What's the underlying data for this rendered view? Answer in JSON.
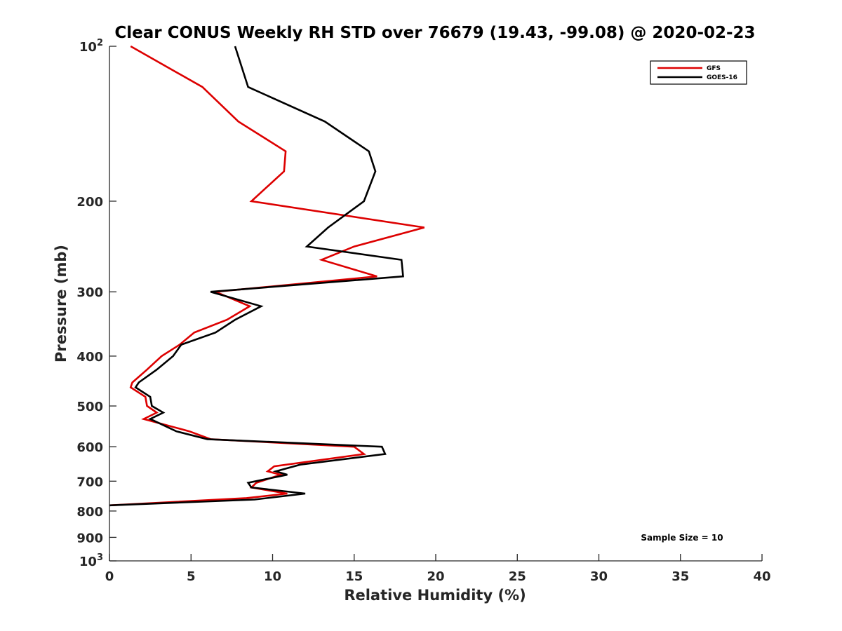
{
  "chart_data": {
    "type": "line",
    "title": "Clear CONUS Weekly RH STD over 76679 (19.43, -99.08) @ 2020-02-23",
    "xlabel": "Relative Humidity (%)",
    "ylabel": "Pressure (mb)",
    "xlim": [
      0,
      40
    ],
    "ylim": [
      100,
      1000
    ],
    "yscale": "log",
    "y_reversed": true,
    "grid": false,
    "legend_position": "top-right",
    "x_ticks": [
      "0",
      "5",
      "10",
      "15",
      "20",
      "25",
      "30",
      "35",
      "40"
    ],
    "y_ticks": [
      {
        "value": 100,
        "base": "10",
        "exp": "2"
      },
      {
        "value": 200,
        "label": "200"
      },
      {
        "value": 300,
        "label": "300"
      },
      {
        "value": 400,
        "label": "400"
      },
      {
        "value": 500,
        "label": "500"
      },
      {
        "value": 600,
        "label": "600"
      },
      {
        "value": 700,
        "label": "700"
      },
      {
        "value": 800,
        "label": "800"
      },
      {
        "value": 900,
        "label": "900"
      },
      {
        "value": 1000,
        "base": "10",
        "exp": "3"
      }
    ],
    "annotation": "Sample Size = 10",
    "series": [
      {
        "name": "GFS",
        "color": "#dd0000",
        "points": [
          [
            1.3,
            100
          ],
          [
            5.7,
            120
          ],
          [
            7.9,
            140
          ],
          [
            10.8,
            160
          ],
          [
            10.7,
            175
          ],
          [
            8.7,
            200
          ],
          [
            19.3,
            225
          ],
          [
            15.0,
            245
          ],
          [
            13.0,
            260
          ],
          [
            16.4,
            280
          ],
          [
            6.5,
            300
          ],
          [
            8.6,
            320
          ],
          [
            7.2,
            340
          ],
          [
            5.2,
            360
          ],
          [
            4.3,
            380
          ],
          [
            3.2,
            400
          ],
          [
            2.3,
            425
          ],
          [
            1.4,
            450
          ],
          [
            1.3,
            460
          ],
          [
            2.2,
            480
          ],
          [
            2.3,
            500
          ],
          [
            2.9,
            515
          ],
          [
            2.1,
            530
          ],
          [
            4.9,
            560
          ],
          [
            6.2,
            580
          ],
          [
            15.0,
            600
          ],
          [
            15.6,
            620
          ],
          [
            10.1,
            655
          ],
          [
            9.7,
            670
          ],
          [
            10.5,
            680
          ],
          [
            9.0,
            705
          ],
          [
            8.7,
            720
          ],
          [
            10.9,
            740
          ],
          [
            8.4,
            755
          ],
          [
            0.0,
            780
          ]
        ]
      },
      {
        "name": "GOES-16",
        "color": "#000000",
        "points": [
          [
            7.7,
            100
          ],
          [
            8.5,
            120
          ],
          [
            13.2,
            140
          ],
          [
            15.9,
            160
          ],
          [
            16.3,
            175
          ],
          [
            15.6,
            200
          ],
          [
            13.4,
            225
          ],
          [
            12.1,
            245
          ],
          [
            17.9,
            260
          ],
          [
            18.0,
            280
          ],
          [
            6.2,
            300
          ],
          [
            9.3,
            320
          ],
          [
            7.7,
            340
          ],
          [
            6.5,
            360
          ],
          [
            4.4,
            380
          ],
          [
            3.9,
            400
          ],
          [
            2.9,
            425
          ],
          [
            1.8,
            450
          ],
          [
            1.6,
            460
          ],
          [
            2.5,
            480
          ],
          [
            2.6,
            500
          ],
          [
            3.3,
            515
          ],
          [
            2.5,
            530
          ],
          [
            4.1,
            560
          ],
          [
            6.0,
            580
          ],
          [
            16.7,
            600
          ],
          [
            16.9,
            620
          ],
          [
            11.7,
            650
          ],
          [
            10.2,
            670
          ],
          [
            10.9,
            680
          ],
          [
            8.5,
            705
          ],
          [
            8.7,
            720
          ],
          [
            12.0,
            740
          ],
          [
            8.9,
            760
          ],
          [
            0.0,
            780
          ]
        ]
      }
    ]
  }
}
